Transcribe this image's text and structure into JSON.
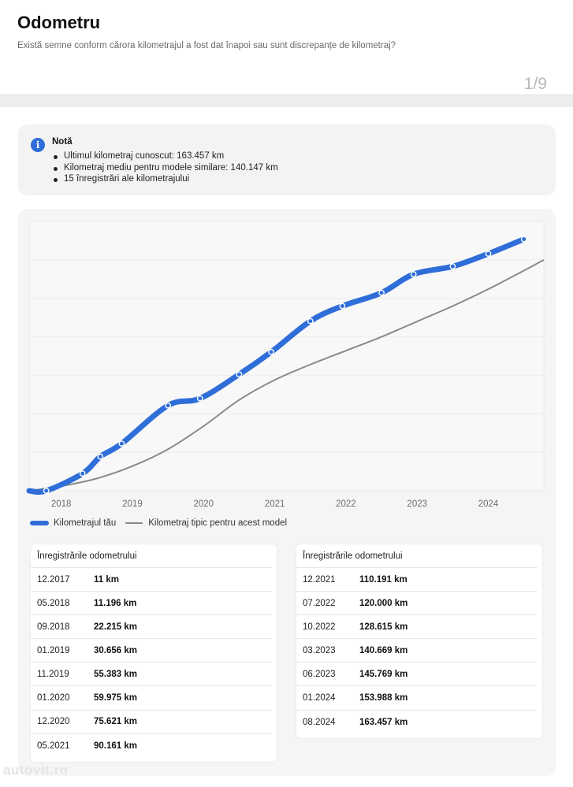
{
  "header": {
    "title": "Odometru",
    "subtitle": "Există semne conform cărora kilometrajul a fost dat înapoi sau sunt discrepanțe de kilometraj?",
    "pager": "1/9"
  },
  "note": {
    "icon": "info-icon",
    "title": "Notă",
    "items": [
      "Ultimul kilometraj cunoscut: 163.457 km",
      "Kilometraj mediu pentru modele similare: 140.147 km",
      "15 înregistrări ale kilometrajului"
    ]
  },
  "chart_data": {
    "type": "line",
    "xlabel": "",
    "ylabel": "",
    "x_ticks": [
      "2018",
      "2019",
      "2020",
      "2021",
      "2022",
      "2023",
      "2024"
    ],
    "ylim": [
      0,
      175000
    ],
    "grid": true,
    "legend": "bottom-left",
    "series": [
      {
        "name": "Kilometrajul tău",
        "color": "#2f6ed8",
        "points": [
          {
            "x": 2017.55,
            "y": 0
          },
          {
            "x": 2017.79,
            "y": 11
          },
          {
            "x": 2018.3,
            "y": 11196
          },
          {
            "x": 2018.55,
            "y": 22215
          },
          {
            "x": 2018.85,
            "y": 30656
          },
          {
            "x": 2019.5,
            "y": 55383
          },
          {
            "x": 2019.95,
            "y": 59975
          },
          {
            "x": 2020.5,
            "y": 75621
          },
          {
            "x": 2020.95,
            "y": 90161
          },
          {
            "x": 2021.5,
            "y": 110191
          },
          {
            "x": 2021.95,
            "y": 120000
          },
          {
            "x": 2022.5,
            "y": 128615
          },
          {
            "x": 2022.95,
            "y": 140669
          },
          {
            "x": 2023.5,
            "y": 145769
          },
          {
            "x": 2024.0,
            "y": 153988
          },
          {
            "x": 2024.5,
            "y": 163457
          }
        ]
      },
      {
        "name": "Kilometraj tipic pentru acest model",
        "color": "#8a8a8a",
        "points": [
          {
            "x": 2017.55,
            "y": 0
          },
          {
            "x": 2018.0,
            "y": 3000
          },
          {
            "x": 2018.5,
            "y": 8000
          },
          {
            "x": 2019.0,
            "y": 16000
          },
          {
            "x": 2019.5,
            "y": 27000
          },
          {
            "x": 2020.0,
            "y": 42000
          },
          {
            "x": 2020.5,
            "y": 59000
          },
          {
            "x": 2021.0,
            "y": 72000
          },
          {
            "x": 2021.5,
            "y": 82000
          },
          {
            "x": 2022.0,
            "y": 91000
          },
          {
            "x": 2022.5,
            "y": 100000
          },
          {
            "x": 2023.0,
            "y": 110000
          },
          {
            "x": 2023.5,
            "y": 120000
          },
          {
            "x": 2024.0,
            "y": 131000
          },
          {
            "x": 2024.5,
            "y": 143000
          },
          {
            "x": 2024.78,
            "y": 150000
          }
        ]
      }
    ]
  },
  "records": {
    "heading": "Înregistrările odometrului",
    "left": [
      {
        "date": "12.2017",
        "km": "11 km"
      },
      {
        "date": "05.2018",
        "km": "11.196 km"
      },
      {
        "date": "09.2018",
        "km": "22.215 km"
      },
      {
        "date": "01.2019",
        "km": "30.656 km"
      },
      {
        "date": "11.2019",
        "km": "55.383 km"
      },
      {
        "date": "01.2020",
        "km": "59.975 km"
      },
      {
        "date": "12.2020",
        "km": "75.621 km"
      },
      {
        "date": "05.2021",
        "km": "90.161 km"
      }
    ],
    "right": [
      {
        "date": "12.2021",
        "km": "110.191 km"
      },
      {
        "date": "07.2022",
        "km": "120.000 km"
      },
      {
        "date": "10.2022",
        "km": "128.615 km"
      },
      {
        "date": "03.2023",
        "km": "140.669 km"
      },
      {
        "date": "06.2023",
        "km": "145.769 km"
      },
      {
        "date": "01.2024",
        "km": "153.988 km"
      },
      {
        "date": "08.2024",
        "km": "163.457 km"
      }
    ]
  },
  "watermark": "autovit.ro"
}
